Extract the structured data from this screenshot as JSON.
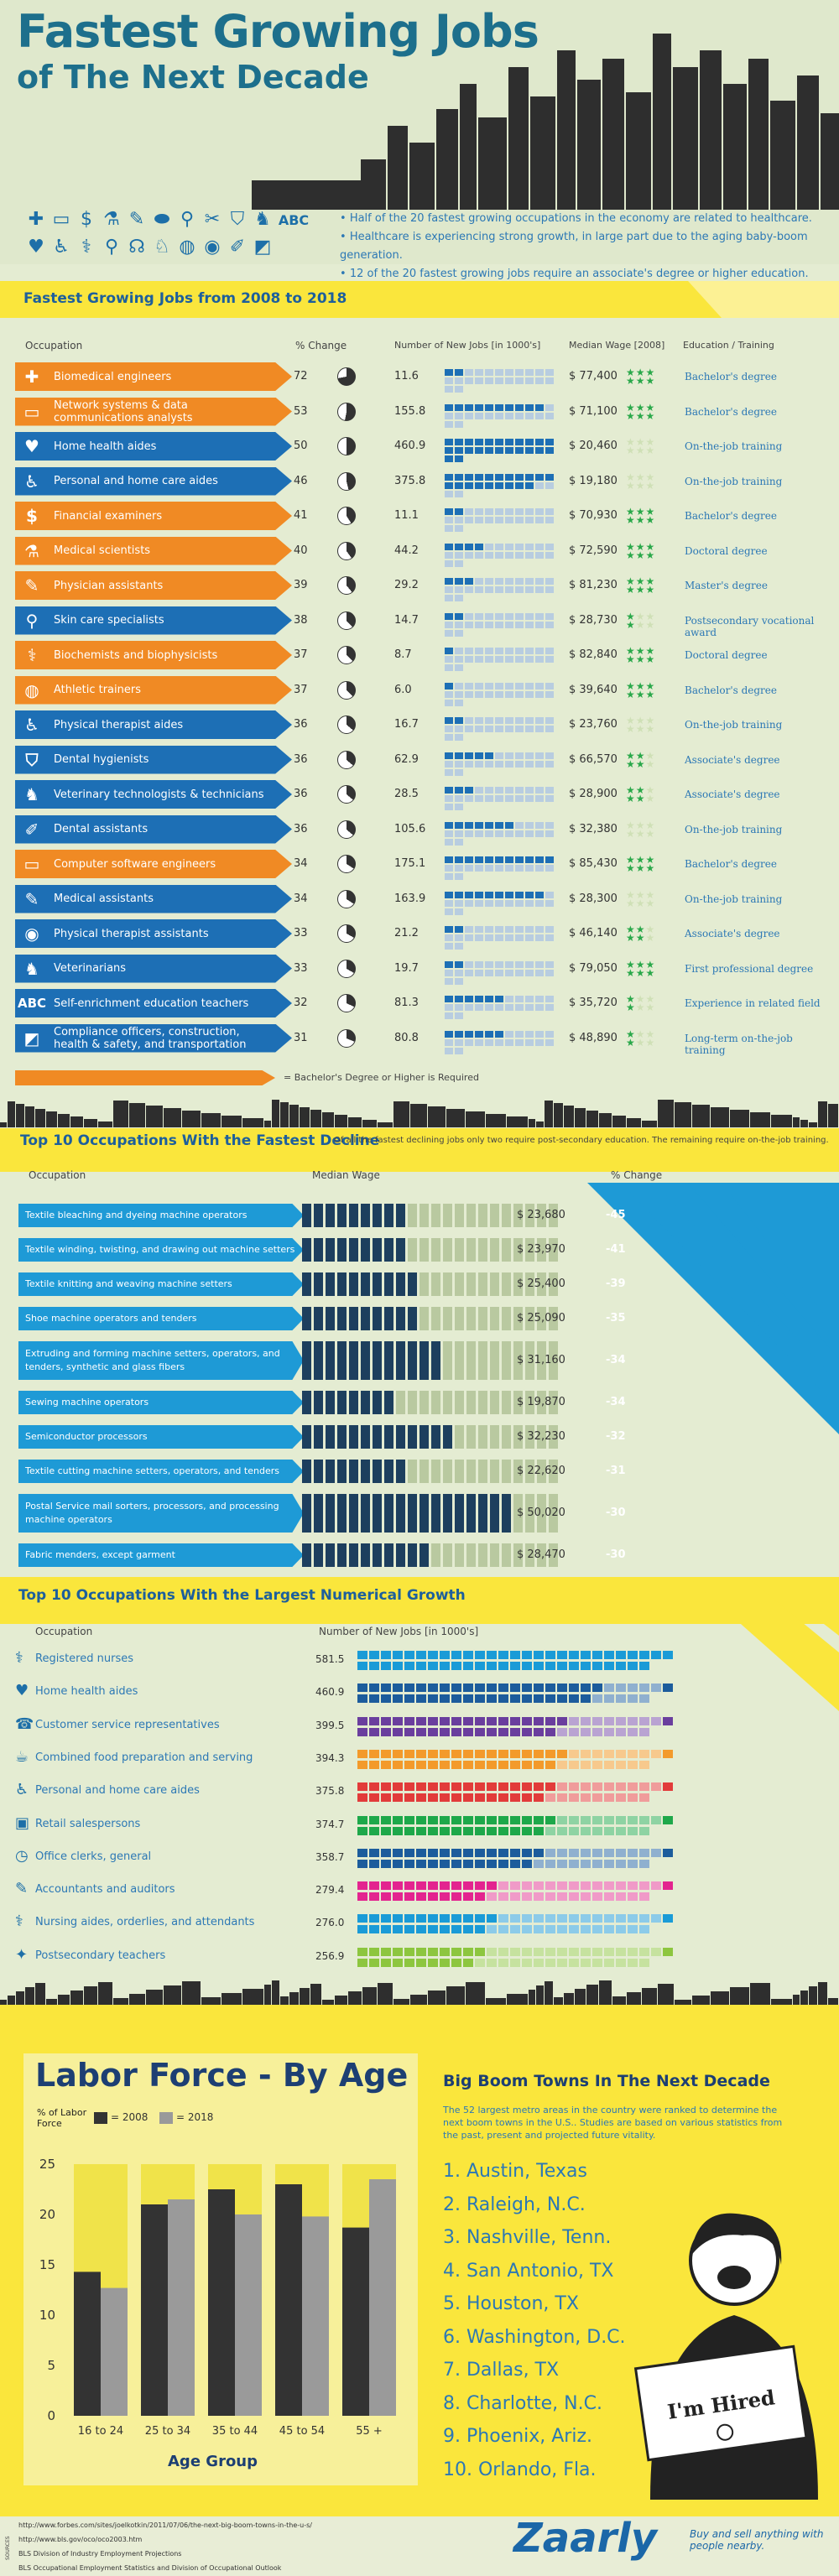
{
  "header": {
    "title_line1": "Fastest Growing Jobs",
    "title_line2": "of The Next Decade",
    "bullets": [
      "Half of the 20 fastest growing occupations in the economy are related to healthcare.",
      "Healthcare is experiencing strong growth, in large part due to the aging baby-boom generation.",
      "12 of the 20 fastest growing jobs require an associate's degree or higher education."
    ],
    "icons": [
      "plus-icon",
      "monitor-icon",
      "dollar-icon",
      "flask-icon",
      "syringe-icon",
      "pill-icon",
      "microscope-icon",
      "scissors-icon",
      "tooth-icon",
      "dog-icon",
      "abc-icon",
      "heart-icon",
      "person-icon",
      "flask-icon",
      "search-icon",
      "stethoscope-icon",
      "cat-icon",
      "ball-icon",
      "pill-icon",
      "pen-icon",
      "image-icon"
    ],
    "icons_label": "ABC"
  },
  "growth": {
    "title": "Fastest Growing Jobs from 2008 to 2018",
    "columns": [
      "Occupation",
      "% Change",
      "Number of New Jobs [in 1000's]",
      "Median Wage [2008]",
      "Education / Training"
    ],
    "rows": [
      {
        "occ": "Biomedical engineers",
        "pct": "72",
        "new": "11.6",
        "wage": "$ 77,400",
        "edu": "Bachelor's degree",
        "orange": true,
        "ic": "✚",
        "fill": 2,
        "stars": 3
      },
      {
        "occ": "Network systems & data communications analysts",
        "pct": "53",
        "new": "155.8",
        "wage": "$ 71,100",
        "edu": "Bachelor's degree",
        "orange": true,
        "ic": "▭",
        "fill": 10,
        "stars": 3
      },
      {
        "occ": "Home health aides",
        "pct": "50",
        "new": "460.9",
        "wage": "$ 20,460",
        "edu": "On-the-job training",
        "orange": false,
        "ic": "♥",
        "fill": 24,
        "stars": 0
      },
      {
        "occ": "Personal and home care aides",
        "pct": "46",
        "new": "375.8",
        "wage": "$ 19,180",
        "edu": "On-the-job training",
        "orange": false,
        "ic": "♿",
        "fill": 20,
        "stars": 0
      },
      {
        "occ": "Financial examiners",
        "pct": "41",
        "new": "11.1",
        "wage": "$ 70,930",
        "edu": "Bachelor's degree",
        "orange": true,
        "ic": "$",
        "fill": 2,
        "stars": 3
      },
      {
        "occ": "Medical scientists",
        "pct": "40",
        "new": "44.2",
        "wage": "$ 72,590",
        "edu": "Doctoral degree",
        "orange": true,
        "ic": "⚗",
        "fill": 4,
        "stars": 3
      },
      {
        "occ": "Physician assistants",
        "pct": "39",
        "new": "29.2",
        "wage": "$ 81,230",
        "edu": "Master's degree",
        "orange": true,
        "ic": "✎",
        "fill": 3,
        "stars": 3
      },
      {
        "occ": "Skin care specialists",
        "pct": "38",
        "new": "14.7",
        "wage": "$ 28,730",
        "edu": "Postsecondary vocational award",
        "orange": false,
        "ic": "⚲",
        "fill": 2,
        "stars": 1
      },
      {
        "occ": "Biochemists and biophysicists",
        "pct": "37",
        "new": "8.7",
        "wage": "$ 82,840",
        "edu": "Doctoral degree",
        "orange": true,
        "ic": "⚕",
        "fill": 1,
        "stars": 3
      },
      {
        "occ": "Athletic trainers",
        "pct": "37",
        "new": "6.0",
        "wage": "$ 39,640",
        "edu": "Bachelor's degree",
        "orange": true,
        "ic": "◍",
        "fill": 1,
        "stars": 3
      },
      {
        "occ": "Physical therapist aides",
        "pct": "36",
        "new": "16.7",
        "wage": "$ 23,760",
        "edu": "On-the-job training",
        "orange": false,
        "ic": "♿",
        "fill": 2,
        "stars": 0
      },
      {
        "occ": "Dental hygienists",
        "pct": "36",
        "new": "62.9",
        "wage": "$ 66,570",
        "edu": "Associate's degree",
        "orange": false,
        "ic": "⛉",
        "fill": 5,
        "stars": 2
      },
      {
        "occ": "Veterinary technologists & technicians",
        "pct": "36",
        "new": "28.5",
        "wage": "$ 28,900",
        "edu": "Associate's degree",
        "orange": false,
        "ic": "♞",
        "fill": 3,
        "stars": 2
      },
      {
        "occ": "Dental assistants",
        "pct": "36",
        "new": "105.6",
        "wage": "$ 32,380",
        "edu": "On-the-job training",
        "orange": false,
        "ic": "✐",
        "fill": 7,
        "stars": 0
      },
      {
        "occ": "Computer software engineers",
        "pct": "34",
        "new": "175.1",
        "wage": "$ 85,430",
        "edu": "Bachelor's degree",
        "orange": true,
        "ic": "▭",
        "fill": 11,
        "stars": 3
      },
      {
        "occ": "Medical assistants",
        "pct": "34",
        "new": "163.9",
        "wage": "$ 28,300",
        "edu": "On-the-job training",
        "orange": false,
        "ic": "✎",
        "fill": 10,
        "stars": 0
      },
      {
        "occ": "Physical therapist assistants",
        "pct": "33",
        "new": "21.2",
        "wage": "$ 46,140",
        "edu": "Associate's degree",
        "orange": false,
        "ic": "◉",
        "fill": 2,
        "stars": 2
      },
      {
        "occ": "Veterinarians",
        "pct": "33",
        "new": "19.7",
        "wage": "$ 79,050",
        "edu": "First professional degree",
        "orange": false,
        "ic": "♞",
        "fill": 2,
        "stars": 3
      },
      {
        "occ": "Self-enrichment education teachers",
        "pct": "32",
        "new": "81.3",
        "wage": "$ 35,720",
        "edu": "Experience in related field",
        "orange": false,
        "ic": "ABC",
        "fill": 6,
        "stars": 1
      },
      {
        "occ": "Compliance officers, construction, health & safety, and transportation",
        "pct": "31",
        "new": "80.8",
        "wage": "$ 48,890",
        "edu": "Long-term on-the-job training",
        "orange": false,
        "ic": "◩",
        "fill": 6,
        "stars": 1
      }
    ],
    "legend": "= Bachelor's Degree or Higher is Required"
  },
  "decline": {
    "title": "Top 10 Occupations With the Fastest Decline",
    "subtitle": "Of all the fastest declining jobs only two require post-secondary education. The remaining require on-the-job training.",
    "columns": [
      "Occupation",
      "Median Wage",
      "% Change"
    ],
    "rows": [
      {
        "occ": "Textile bleaching and dyeing machine operators",
        "wage": "$ 23,680",
        "pct": "-45",
        "tall": false,
        "fill": 9
      },
      {
        "occ": "Textile winding, twisting, and drawing out machine setters",
        "wage": "$ 23,970",
        "pct": "-41",
        "tall": false,
        "fill": 9
      },
      {
        "occ": "Textile knitting and weaving machine setters",
        "wage": "$ 25,400",
        "pct": "-39",
        "tall": false,
        "fill": 10
      },
      {
        "occ": "Shoe machine operators and tenders",
        "wage": "$ 25,090",
        "pct": "-35",
        "tall": false,
        "fill": 10
      },
      {
        "occ": "Extruding and forming machine setters, operators, and tenders, synthetic and glass fibers",
        "wage": "$ 31,160",
        "pct": "-34",
        "tall": true,
        "fill": 12
      },
      {
        "occ": "Sewing machine operators",
        "wage": "$ 19,870",
        "pct": "-34",
        "tall": false,
        "fill": 8
      },
      {
        "occ": "Semiconductor processors",
        "wage": "$ 32,230",
        "pct": "-32",
        "tall": false,
        "fill": 13
      },
      {
        "occ": "Textile cutting machine setters, operators, and tenders",
        "wage": "$ 22,620",
        "pct": "-31",
        "tall": false,
        "fill": 9
      },
      {
        "occ": "Postal Service mail sorters, processors, and processing machine operators",
        "wage": "$ 50,020",
        "pct": "-30",
        "tall": true,
        "fill": 18
      },
      {
        "occ": "Fabric menders, except garment",
        "wage": "$ 28,470",
        "pct": "-30",
        "tall": false,
        "fill": 11
      }
    ]
  },
  "numerical": {
    "title": "Top 10 Occupations With the Largest Numerical Growth",
    "columns": [
      "Occupation",
      "Number of New Jobs [in 1000's]"
    ],
    "rows": [
      {
        "occ": "Registered nurses",
        "new": "581.5",
        "color": "#1a9bd7",
        "light": "#8ccbe9",
        "ic": "⚕"
      },
      {
        "occ": "Home health aides",
        "new": "460.9",
        "color": "#1c5c9c",
        "light": "#8fb0cf",
        "ic": "♥"
      },
      {
        "occ": "Customer service representatives",
        "new": "399.5",
        "color": "#6a3e9e",
        "light": "#b9a3d2",
        "ic": "☎"
      },
      {
        "occ": "Combined food preparation and serving",
        "new": "394.3",
        "color": "#f39a2b",
        "light": "#f7c98d",
        "ic": "☕"
      },
      {
        "occ": "Personal and home care aides",
        "new": "375.8",
        "color": "#e23b3a",
        "light": "#f09c9b",
        "ic": "♿"
      },
      {
        "occ": "Retail salespersons",
        "new": "374.7",
        "color": "#1ea84a",
        "light": "#8ed3a3",
        "ic": "▣"
      },
      {
        "occ": "Office clerks, general",
        "new": "358.7",
        "color": "#1c5c9c",
        "light": "#8fb0cf",
        "ic": "◷"
      },
      {
        "occ": "Accountants and auditors",
        "new": "279.4",
        "color": "#e3248f",
        "light": "#f09ac8",
        "ic": "✎"
      },
      {
        "occ": "Nursing aides, orderlies, and attendants",
        "new": "276.0",
        "color": "#1a9bd7",
        "light": "#8ccbe9",
        "ic": "⚕"
      },
      {
        "occ": "Postsecondary teachers",
        "new": "256.9",
        "color": "#8dc63f",
        "light": "#c6e29f",
        "ic": "✦"
      }
    ]
  },
  "chart_data": {
    "type": "bar",
    "title": "Labor Force - By Age",
    "ylabel": "% of Labor Force",
    "xlabel": "Age Group",
    "categories": [
      "16 to 24",
      "25 to 34",
      "35 to 44",
      "45 to 54",
      "55 +"
    ],
    "series": [
      {
        "name": "= 2008",
        "values": [
          14.3,
          21.0,
          22.5,
          23.0,
          18.7
        ]
      },
      {
        "name": "= 2018",
        "values": [
          12.7,
          21.5,
          20.0,
          19.8,
          23.5
        ]
      }
    ],
    "ylim": [
      0,
      25
    ],
    "yticks": [
      "0",
      "5",
      "10",
      "15",
      "20",
      "25"
    ],
    "colors": {
      "2008": "#333333",
      "2018": "#9a9a9a",
      "bg": "#f5ef8a"
    }
  },
  "boom": {
    "title": "Big Boom Towns In The Next Decade",
    "text": "The 52 largest metro areas in the country were ranked to determine the next boom towns in the U.S.. Studies are based on various statistics from the past, present and projected future vitality.",
    "items": [
      "1. Austin, Texas",
      "2. Raleigh, N.C.",
      "3. Nashville, Tenn.",
      "4. San Antonio, TX",
      "5. Houston, TX",
      "6. Washington, D.C.",
      "7. Dallas, TX",
      "8. Charlotte, N.C.",
      "9. Phoenix, Ariz.",
      "10. Orlando, Fla."
    ],
    "sign": "I'm Hired"
  },
  "footer": {
    "sources_label": "SOURCES",
    "sources": [
      "http://www.forbes.com/sites/joelkotkin/2011/07/06/the-next-big-boom-towns-in-the-u-s/",
      "http://www.bls.gov/oco/oco2003.htm",
      "BLS Division of Industry Employment Projections",
      "BLS Occupational Employment Statistics and Division of Occupational Outlook"
    ],
    "brand": "Zaarly",
    "tagline": "Buy and sell anything with people nearby."
  }
}
